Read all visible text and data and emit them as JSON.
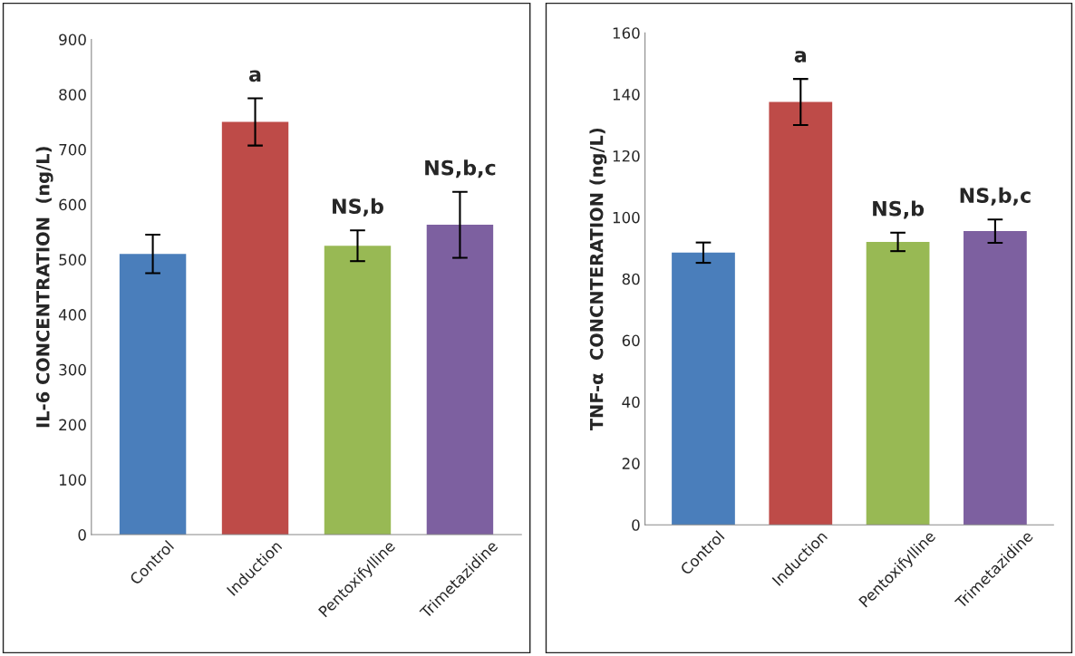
{
  "chart_data": [
    {
      "type": "bar",
      "ylabel": "IL-6 CONCENTRATION  (ng/L)",
      "categories": [
        "Control",
        "Induction",
        "Pentoxifylline",
        "Trimetazidine"
      ],
      "values": [
        510,
        750,
        525,
        563
      ],
      "errors": [
        35,
        43,
        28,
        60
      ],
      "colors": [
        "#4a7ebb",
        "#be4b48",
        "#98b954",
        "#7d60a0"
      ],
      "ylim": [
        0,
        900
      ],
      "yticks": [
        0,
        100,
        200,
        300,
        400,
        500,
        600,
        700,
        800,
        900
      ],
      "grid": false,
      "annotations": [
        {
          "text": "a",
          "x": "Induction",
          "y": 793
        },
        {
          "text": "NS,b",
          "x": "Pentoxifylline",
          "y": 553
        },
        {
          "text": "NS,b,c",
          "x": "Trimetazidine",
          "y": 623
        }
      ]
    },
    {
      "type": "bar",
      "ylabel": "TNF-α  CONCNTERATION (ng/L)",
      "categories": [
        "Control",
        "Induction",
        "Pentoxifylline",
        "Trimetazidine"
      ],
      "values": [
        88.5,
        137.5,
        92,
        95.5
      ],
      "errors": [
        3.3,
        7.5,
        3,
        3.8
      ],
      "colors": [
        "#4a7ebb",
        "#be4b48",
        "#98b954",
        "#7d60a0"
      ],
      "ylim": [
        0,
        160
      ],
      "yticks": [
        0,
        20,
        40,
        60,
        80,
        100,
        120,
        140,
        160
      ],
      "grid": false,
      "annotations": [
        {
          "text": "a",
          "x": "Induction",
          "y": 145
        },
        {
          "text": "NS,b",
          "x": "Pentoxifylline",
          "y": 95
        },
        {
          "text": "NS,b,c",
          "x": "Trimetazidine",
          "y": 99.3
        }
      ]
    }
  ]
}
